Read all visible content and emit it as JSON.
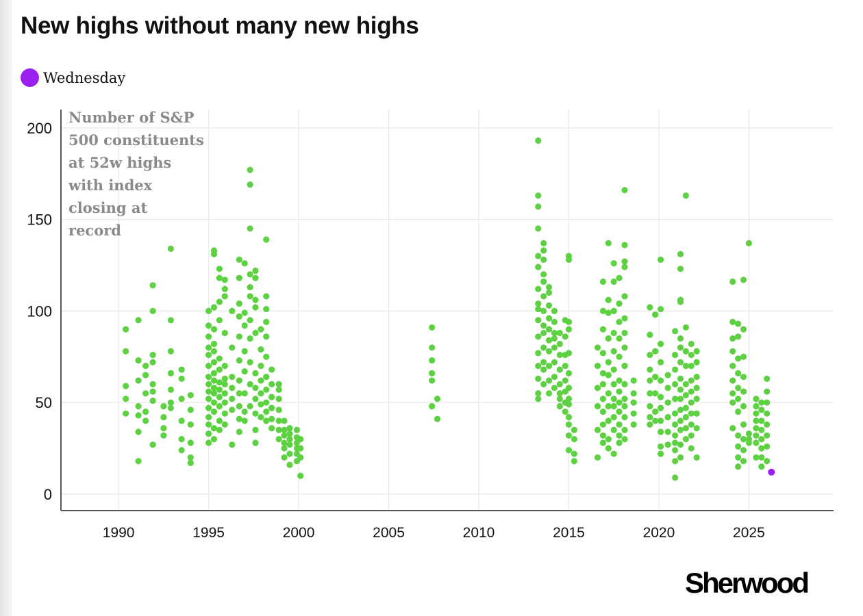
{
  "title": "New highs without many new highs",
  "legend": {
    "label": "Wednesday",
    "color": "#9b1ff0"
  },
  "brand": "Sherwood",
  "chart_data": {
    "type": "scatter",
    "title": "New highs without many new highs",
    "annotation": "Number of S&P\n500 constituents\nat 52w highs\nwith index\nclosing at\nrecord",
    "xlabel": "",
    "ylabel": "",
    "xlim": [
      1986.8,
      2029.7
    ],
    "ylim": [
      -9,
      210
    ],
    "xticks": [
      1990,
      1995,
      2000,
      2005,
      2010,
      2015,
      2020,
      2025
    ],
    "yticks": [
      0,
      50,
      100,
      150,
      200
    ],
    "grid": true,
    "colors": {
      "history": "#5dd142",
      "highlight": "#9b1ff0"
    },
    "series": [
      {
        "name": "History",
        "groups": [
          {
            "x": 1990.4,
            "y": [
              90,
              78,
              59,
              52,
              44
            ]
          },
          {
            "x": 1991.1,
            "y": [
              18,
              34,
              43,
              48,
              62,
              73,
              95
            ]
          },
          {
            "x": 1991.5,
            "y": [
              40,
              45,
              55,
              65,
              70
            ]
          },
          {
            "x": 1991.9,
            "y": [
              27,
              51,
              56,
              60,
              72,
              76,
              100,
              114
            ]
          },
          {
            "x": 1992.5,
            "y": [
              32,
              36,
              42,
              48
            ]
          },
          {
            "x": 1992.9,
            "y": [
              47,
              50,
              57,
              66,
              78,
              95,
              134
            ]
          },
          {
            "x": 1993.5,
            "y": [
              24,
              30,
              40,
              52,
              63,
              68
            ]
          },
          {
            "x": 1994.0,
            "y": [
              17,
              20,
              28,
              38,
              46,
              54
            ]
          },
          {
            "x": 1995.0,
            "y": [
              28,
              33,
              38,
              42,
              47,
              52,
              56,
              60,
              64,
              70,
              76,
              80,
              86,
              92,
              100
            ]
          },
          {
            "x": 1995.3,
            "y": [
              30,
              36,
              45,
              50,
              55,
              58,
              62,
              66,
              72,
              78,
              82,
              90,
              102,
              131,
              133
            ]
          },
          {
            "x": 1995.6,
            "y": [
              35,
              40,
              48,
              53,
              57,
              61,
              68,
              74,
              95,
              105,
              118,
              123
            ]
          },
          {
            "x": 1995.9,
            "y": [
              38,
              44,
              50,
              55,
              60,
              63,
              70,
              88,
              108,
              112,
              117
            ]
          },
          {
            "x": 1996.3,
            "y": [
              27,
              46,
              52,
              58,
              64,
              80,
              100
            ]
          },
          {
            "x": 1996.7,
            "y": [
              34,
              41,
              48,
              55,
              62,
              73,
              86,
              97,
              104,
              118,
              128
            ]
          },
          {
            "x": 1997.0,
            "y": [
              40,
              45,
              55,
              67,
              78,
              92,
              99,
              126
            ]
          },
          {
            "x": 1997.3,
            "y": [
              48,
              60,
              72,
              85,
              95,
              108,
              113,
              120,
              145,
              169,
              177
            ]
          },
          {
            "x": 1997.6,
            "y": [
              28,
              35,
              44,
              52,
              58,
              66,
              88,
              102,
              106,
              118,
              122
            ]
          },
          {
            "x": 1997.9,
            "y": [
              42,
              49,
              55,
              62,
              70,
              79,
              90
            ]
          },
          {
            "x": 1998.2,
            "y": [
              40,
              45,
              50,
              57,
              64,
              75,
              86,
              94,
              101,
              108,
              139
            ]
          },
          {
            "x": 1998.5,
            "y": [
              36,
              41,
              47,
              53,
              60,
              68
            ]
          },
          {
            "x": 1998.9,
            "y": [
              30,
              35,
              40,
              46,
              52,
              57,
              60
            ]
          },
          {
            "x": 1999.2,
            "y": [
              20,
              25,
              28,
              32,
              35,
              40
            ]
          },
          {
            "x": 1999.5,
            "y": [
              16,
              22,
              27,
              30,
              33,
              36
            ]
          },
          {
            "x": 1999.9,
            "y": [
              18,
              22,
              25,
              28,
              31,
              35
            ]
          },
          {
            "x": 2000.1,
            "y": [
              10,
              20,
              25,
              30
            ]
          },
          {
            "x": 2007.4,
            "y": [
              48,
              62,
              66,
              73,
              80,
              91
            ]
          },
          {
            "x": 2007.7,
            "y": [
              41,
              52
            ]
          },
          {
            "x": 2013.3,
            "y": [
              52,
              55,
              63,
              70,
              77,
              86,
              95,
              101,
              104,
              112,
              124,
              130,
              145,
              157,
              163,
              193
            ]
          },
          {
            "x": 2013.6,
            "y": [
              60,
              68,
              72,
              80,
              88,
              92,
              100,
              108,
              116,
              120,
              128,
              133,
              137
            ]
          },
          {
            "x": 2013.9,
            "y": [
              55,
              62,
              70,
              78,
              84,
              90,
              96,
              103,
              110,
              113
            ]
          },
          {
            "x": 2014.2,
            "y": [
              58,
              64,
              72,
              80,
              85,
              88,
              94,
              100
            ]
          },
          {
            "x": 2014.5,
            "y": [
              48,
              52,
              55,
              60,
              68,
              76,
              82,
              88
            ]
          },
          {
            "x": 2014.8,
            "y": [
              45,
              50,
              56,
              62,
              70,
              76,
              86,
              95
            ]
          },
          {
            "x": 2015.0,
            "y": [
              24,
              32,
              38,
              42,
              49,
              52,
              58,
              66,
              77,
              90,
              94,
              128,
              130
            ]
          },
          {
            "x": 2015.3,
            "y": [
              18,
              22,
              30,
              35
            ]
          },
          {
            "x": 2016.6,
            "y": [
              20,
              35,
              48,
              58,
              70,
              80
            ]
          },
          {
            "x": 2016.9,
            "y": [
              28,
              32,
              38,
              45,
              52,
              60,
              66,
              77,
              90,
              100,
              116
            ]
          },
          {
            "x": 2017.2,
            "y": [
              25,
              30,
              40,
              48,
              55,
              65,
              72,
              85,
              99,
              106,
              137
            ]
          },
          {
            "x": 2017.5,
            "y": [
              22,
              35,
              42,
              48,
              52,
              60,
              68,
              78,
              88,
              100,
              116,
              126
            ]
          },
          {
            "x": 2017.8,
            "y": [
              28,
              32,
              38,
              45,
              50,
              56,
              62,
              75,
              85,
              94,
              104,
              118
            ]
          },
          {
            "x": 2018.1,
            "y": [
              30,
              35,
              42,
              48,
              52,
              60,
              70,
              80,
              88,
              96,
              108,
              124,
              127,
              136,
              166
            ]
          },
          {
            "x": 2018.6,
            "y": [
              38,
              44,
              50,
              55,
              62
            ]
          },
          {
            "x": 2019.5,
            "y": [
              38,
              42,
              48,
              55,
              62,
              68,
              76,
              87,
              102
            ]
          },
          {
            "x": 2019.8,
            "y": [
              40,
              45,
              55,
              64,
              78,
              98
            ]
          },
          {
            "x": 2020.1,
            "y": [
              22,
              26,
              34,
              40,
              47,
              53,
              62,
              72,
              82,
              101,
              128
            ]
          },
          {
            "x": 2020.5,
            "y": [
              27,
              34,
              42,
              50,
              58,
              65
            ]
          },
          {
            "x": 2020.9,
            "y": [
              9,
              18,
              24,
              28,
              32,
              38,
              44,
              52,
              60,
              68,
              76,
              89
            ]
          },
          {
            "x": 2021.2,
            "y": [
              20,
              27,
              35,
              40,
              46,
              52,
              57,
              63,
              72,
              80,
              85,
              105,
              106,
              123,
              131
            ]
          },
          {
            "x": 2021.5,
            "y": [
              30,
              36,
              42,
              47,
              54,
              60,
              70,
              78,
              91,
              163
            ]
          },
          {
            "x": 2021.8,
            "y": [
              25,
              32,
              38,
              44,
              50,
              56,
              62,
              70,
              76,
              82
            ]
          },
          {
            "x": 2022.1,
            "y": [
              20,
              36,
              44,
              52,
              58,
              64,
              72,
              78
            ]
          },
          {
            "x": 2024.1,
            "y": [
              36,
              50,
              55,
              62,
              70,
              78,
              85,
              94,
              116
            ]
          },
          {
            "x": 2024.4,
            "y": [
              15,
              20,
              26,
              32,
              45,
              52,
              58,
              66,
              74,
              86,
              93
            ]
          },
          {
            "x": 2024.7,
            "y": [
              18,
              24,
              30,
              38,
              48,
              56,
              64,
              75,
              90,
              117
            ]
          },
          {
            "x": 2025.0,
            "y": [
              28,
              30,
              33,
              137
            ]
          },
          {
            "x": 2025.4,
            "y": [
              20,
              28,
              32,
              36,
              40,
              44,
              48,
              52
            ]
          },
          {
            "x": 2025.7,
            "y": [
              15,
              20,
              25,
              30,
              35,
              40,
              46,
              50
            ]
          },
          {
            "x": 2026.0,
            "y": [
              18,
              26,
              32,
              38,
              44,
              50,
              56,
              63
            ]
          }
        ]
      },
      {
        "name": "Wednesday",
        "groups": [
          {
            "x": 2026.25,
            "y": [
              12
            ]
          }
        ]
      }
    ]
  }
}
